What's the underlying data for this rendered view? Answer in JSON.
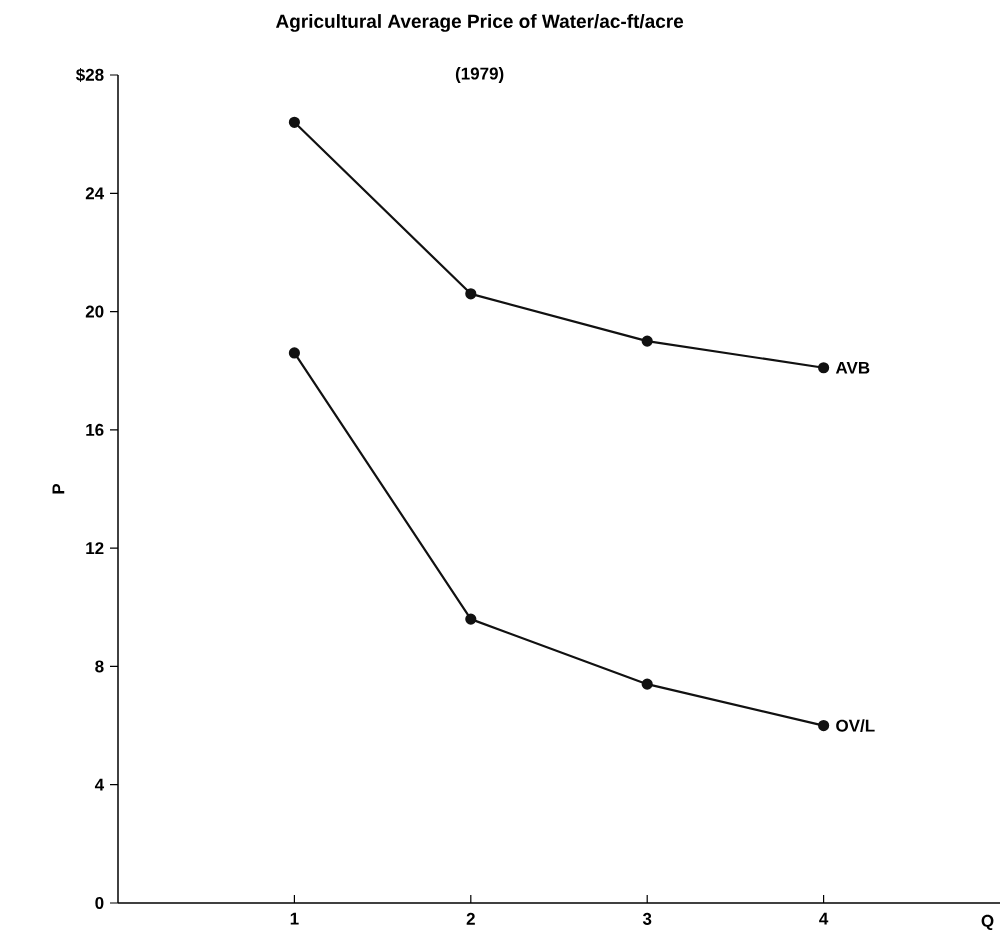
{
  "chart_data": {
    "type": "line",
    "title": "Agricultural Average Price of Water/ac-ft/acre",
    "subtitle": "(1979)",
    "xlabel": "Q",
    "ylabel": "P",
    "x": [
      1,
      2,
      3,
      4
    ],
    "series": [
      {
        "name": "AVB",
        "color": "#111111",
        "values": [
          26.4,
          20.6,
          19.0,
          18.1
        ]
      },
      {
        "name": "OV/L",
        "color": "#111111",
        "values": [
          18.6,
          9.6,
          7.4,
          6.0
        ]
      }
    ],
    "xlim": [
      0,
      5
    ],
    "ylim": [
      0,
      28
    ],
    "xticks": [
      1,
      2,
      3,
      4
    ],
    "yticks": [
      0,
      4,
      8,
      12,
      16,
      20,
      24,
      {
        "value": 28,
        "label": "$28"
      }
    ],
    "grid": false,
    "legend": false,
    "marker": "circle",
    "line_style": "solid"
  }
}
